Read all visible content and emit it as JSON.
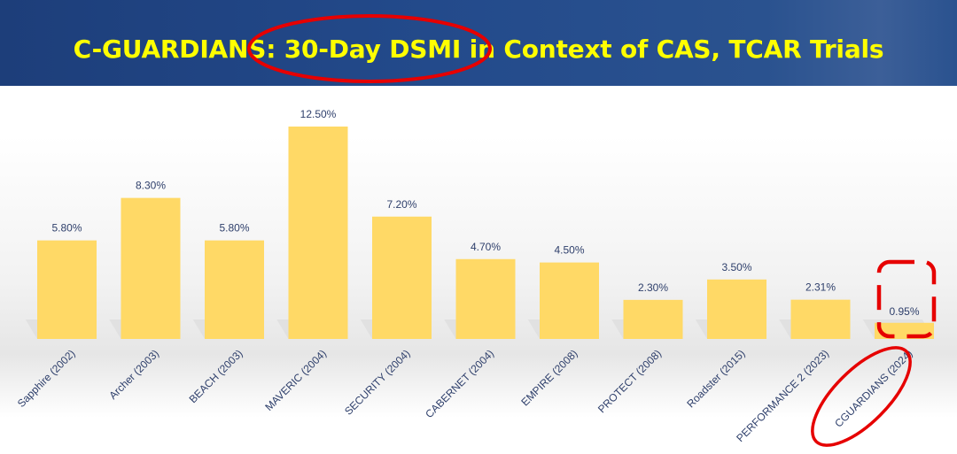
{
  "title": "C-GUARDIANS: 30-Day DSMI in Context of CAS, TCAR Trials",
  "colors": {
    "title_bar": "#234a8b",
    "title_text": "#ffff00",
    "bar": "#ffd966",
    "label_text": "#2e3f6b",
    "highlight": "#e60000"
  },
  "chart_data": {
    "type": "bar",
    "title": "",
    "xlabel": "",
    "ylabel": "",
    "ylim": [
      0,
      13
    ],
    "grid": false,
    "legend": "none",
    "categories": [
      "Sapphire (2002)",
      "Archer (2003)",
      "BEACH (2003)",
      "MAVERIC (2004)",
      "SECURITY (2004)",
      "CABERNET (2004)",
      "EMPIRE (2008)",
      "PROTECT (2008)",
      "Roadster (2015)",
      "PERFORMANCE 2 (2023)",
      "CGUARDIANS (2024)"
    ],
    "values": [
      5.8,
      8.3,
      5.8,
      12.5,
      7.2,
      4.7,
      4.5,
      2.3,
      3.5,
      2.31,
      0.95
    ],
    "value_labels": [
      "5.80%",
      "8.30%",
      "5.80%",
      "12.50%",
      "7.20%",
      "4.70%",
      "4.50%",
      "2.30%",
      "3.50%",
      "2.31%",
      "0.95%"
    ],
    "annotations": [
      {
        "type": "ellipse",
        "target": "30-Day DSMI",
        "color": "#e60000"
      },
      {
        "type": "dashed-rounded-box",
        "target": "0.95%",
        "color": "#e60000"
      },
      {
        "type": "ellipse",
        "target": "CGUARDIANS (2024)",
        "color": "#e60000"
      }
    ]
  }
}
